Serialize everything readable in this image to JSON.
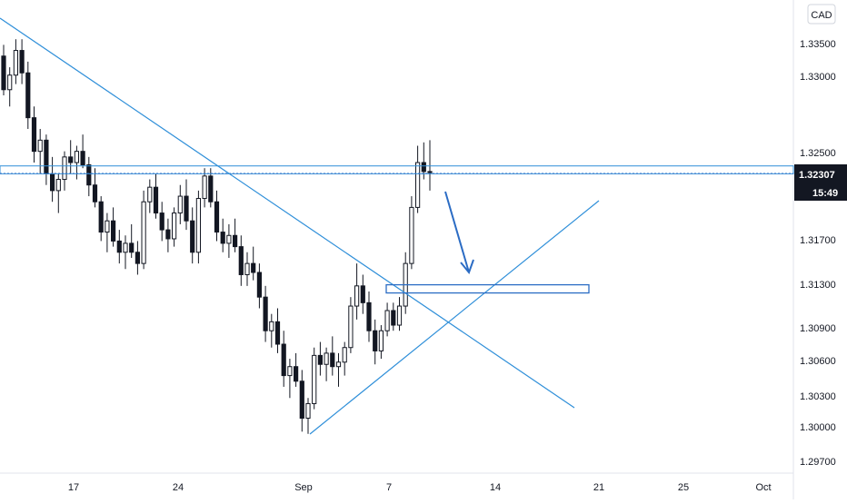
{
  "currency_label": "CAD",
  "price_badge": {
    "value": "1.32307",
    "countdown": "15:49"
  },
  "colors": {
    "candle": "#131722",
    "drawing": "#2f8fd9",
    "box": "#2b6cc4",
    "badge_bg": "#131722",
    "badge_text": "#ffffff",
    "axis_text": "#131722",
    "axis_line": "#e0e3eb"
  },
  "chart_data": {
    "type": "candlestick",
    "symbol_currency": "CAD",
    "y_axis": {
      "ticks": [
        "1.33500",
        "1.33000",
        "1.32500",
        "1.32100",
        "1.31700",
        "1.31300",
        "1.30900",
        "1.30600",
        "1.30300",
        "1.30000",
        "1.29700"
      ],
      "range": [
        1.2963,
        1.3385
      ]
    },
    "x_axis": {
      "ticks": [
        "17",
        "24",
        "Sep",
        "7",
        "14",
        "21",
        "25",
        "Oct"
      ]
    },
    "last_price": "1.32307",
    "candles": [
      [
        1.3335,
        1.3345,
        1.33,
        1.3305
      ],
      [
        1.3305,
        1.3325,
        1.329,
        1.3318
      ],
      [
        1.3318,
        1.335,
        1.331,
        1.334
      ],
      [
        1.334,
        1.335,
        1.331,
        1.332
      ],
      [
        1.332,
        1.333,
        1.327,
        1.328
      ],
      [
        1.328,
        1.329,
        1.324,
        1.325
      ],
      [
        1.325,
        1.327,
        1.323,
        1.326
      ],
      [
        1.326,
        1.3265,
        1.322,
        1.323
      ],
      [
        1.323,
        1.3245,
        1.3205,
        1.3215
      ],
      [
        1.3215,
        1.323,
        1.3195,
        1.3225
      ],
      [
        1.3225,
        1.325,
        1.3215,
        1.3245
      ],
      [
        1.3245,
        1.326,
        1.323,
        1.324
      ],
      [
        1.324,
        1.3255,
        1.3225,
        1.325
      ],
      [
        1.325,
        1.3265,
        1.3235,
        1.3238
      ],
      [
        1.3238,
        1.3245,
        1.321,
        1.322
      ],
      [
        1.322,
        1.3235,
        1.32,
        1.3205
      ],
      [
        1.3205,
        1.321,
        1.317,
        1.3178
      ],
      [
        1.3178,
        1.3195,
        1.316,
        1.3188
      ],
      [
        1.3188,
        1.32,
        1.3165,
        1.317
      ],
      [
        1.317,
        1.318,
        1.315,
        1.316
      ],
      [
        1.316,
        1.3175,
        1.3145,
        1.3168
      ],
      [
        1.3168,
        1.3185,
        1.3155,
        1.316
      ],
      [
        1.316,
        1.317,
        1.314,
        1.315
      ],
      [
        1.315,
        1.3215,
        1.3145,
        1.3205
      ],
      [
        1.3205,
        1.3225,
        1.3195,
        1.3218
      ],
      [
        1.3218,
        1.323,
        1.319,
        1.3195
      ],
      [
        1.3195,
        1.3205,
        1.317,
        1.318
      ],
      [
        1.318,
        1.319,
        1.316,
        1.3172
      ],
      [
        1.3172,
        1.32,
        1.3165,
        1.3195
      ],
      [
        1.3195,
        1.322,
        1.3185,
        1.321
      ],
      [
        1.321,
        1.3225,
        1.318,
        1.3188
      ],
      [
        1.3188,
        1.32,
        1.315,
        1.316
      ],
      [
        1.316,
        1.3215,
        1.315,
        1.3208
      ],
      [
        1.3208,
        1.3235,
        1.32,
        1.3228
      ],
      [
        1.3228,
        1.3235,
        1.32,
        1.3205
      ],
      [
        1.3205,
        1.3215,
        1.317,
        1.3178
      ],
      [
        1.3178,
        1.319,
        1.316,
        1.3168
      ],
      [
        1.3168,
        1.3185,
        1.3155,
        1.3175
      ],
      [
        1.3175,
        1.319,
        1.316,
        1.3165
      ],
      [
        1.3165,
        1.3175,
        1.313,
        1.314
      ],
      [
        1.314,
        1.316,
        1.313,
        1.315
      ],
      [
        1.315,
        1.3165,
        1.3135,
        1.3142
      ],
      [
        1.3142,
        1.315,
        1.311,
        1.312
      ],
      [
        1.312,
        1.313,
        1.308,
        1.309
      ],
      [
        1.309,
        1.3105,
        1.3075,
        1.3098
      ],
      [
        1.3098,
        1.311,
        1.307,
        1.3078
      ],
      [
        1.3078,
        1.309,
        1.304,
        1.305
      ],
      [
        1.305,
        1.3065,
        1.303,
        1.3058
      ],
      [
        1.3058,
        1.307,
        1.304,
        1.3045
      ],
      [
        1.3045,
        1.3055,
        1.3,
        1.3012
      ],
      [
        1.3012,
        1.303,
        1.2998,
        1.3025
      ],
      [
        1.3025,
        1.3075,
        1.302,
        1.3068
      ],
      [
        1.3068,
        1.308,
        1.305,
        1.306
      ],
      [
        1.306,
        1.3075,
        1.3045,
        1.307
      ],
      [
        1.307,
        1.3085,
        1.305,
        1.3058
      ],
      [
        1.3058,
        1.307,
        1.304,
        1.3062
      ],
      [
        1.3062,
        1.308,
        1.305,
        1.3075
      ],
      [
        1.3075,
        1.312,
        1.307,
        1.3112
      ],
      [
        1.3112,
        1.315,
        1.31,
        1.313
      ],
      [
        1.313,
        1.314,
        1.3105,
        1.3115
      ],
      [
        1.3115,
        1.3125,
        1.308,
        1.309
      ],
      [
        1.309,
        1.31,
        1.306,
        1.3072
      ],
      [
        1.3072,
        1.3095,
        1.3065,
        1.309
      ],
      [
        1.309,
        1.3115,
        1.3085,
        1.3108
      ],
      [
        1.3108,
        1.3115,
        1.309,
        1.3095
      ],
      [
        1.3095,
        1.312,
        1.309,
        1.3112
      ],
      [
        1.3112,
        1.316,
        1.3105,
        1.315
      ],
      [
        1.315,
        1.321,
        1.3145,
        1.32
      ],
      [
        1.32,
        1.3255,
        1.3195,
        1.324
      ],
      [
        1.324,
        1.3258,
        1.3225,
        1.3232
      ],
      [
        1.3232,
        1.326,
        1.3215,
        1.3231
      ]
    ],
    "drawings": {
      "horizontal_level_zone": [
        1.323,
        1.3237
      ],
      "demand_zone_box": [
        1.3124,
        1.3131
      ]
    }
  }
}
